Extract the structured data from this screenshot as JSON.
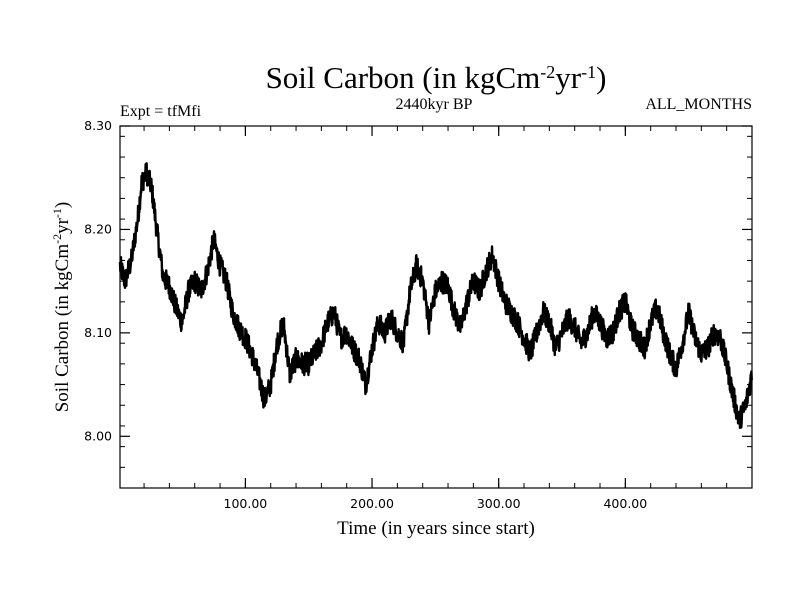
{
  "chart_data": {
    "type": "line",
    "title": "Soil Carbon (in kgCm",
    "title_exp1": "-2",
    "title_mid": "yr",
    "title_exp2": "-1",
    "title_end": ")",
    "left_subtitle": "Expt = tfMfi",
    "center_subtitle": "2440kyr BP",
    "right_subtitle": "ALL_MONTHS",
    "xlabel": "Time (in years since start)",
    "ylabel": "Soil Carbon (in kgCm",
    "ylabel_exp1": "-2",
    "ylabel_mid": "yr",
    "ylabel_exp2": "-1",
    "ylabel_end": ")",
    "xlim": [
      1,
      500
    ],
    "ylim": [
      7.95,
      8.3
    ],
    "x_ticks": [
      {
        "value": 100,
        "label": "100.00"
      },
      {
        "value": 200,
        "label": "200.00"
      },
      {
        "value": 300,
        "label": "300.00"
      },
      {
        "value": 400,
        "label": "400.00"
      }
    ],
    "y_ticks": [
      {
        "value": 8.0,
        "label": "8.00"
      },
      {
        "value": 8.1,
        "label": "8.10"
      },
      {
        "value": 8.2,
        "label": "8.20"
      },
      {
        "value": 8.3,
        "label": "8.30"
      }
    ],
    "series": [
      {
        "name": "Soil Carbon",
        "color": "#000000",
        "x": [
          1,
          5,
          10,
          15,
          18,
          22,
          26,
          30,
          35,
          40,
          45,
          50,
          55,
          60,
          65,
          70,
          75,
          80,
          85,
          90,
          95,
          100,
          105,
          110,
          115,
          120,
          125,
          130,
          135,
          140,
          145,
          150,
          155,
          160,
          165,
          170,
          175,
          180,
          185,
          190,
          195,
          200,
          205,
          210,
          215,
          220,
          225,
          230,
          235,
          240,
          245,
          250,
          255,
          260,
          265,
          270,
          275,
          280,
          285,
          290,
          295,
          300,
          305,
          310,
          315,
          320,
          325,
          330,
          335,
          340,
          345,
          350,
          355,
          360,
          365,
          370,
          375,
          380,
          385,
          390,
          395,
          400,
          405,
          410,
          415,
          420,
          425,
          430,
          435,
          440,
          445,
          450,
          455,
          460,
          465,
          470,
          475,
          480,
          485,
          490,
          495,
          500
        ],
        "values": [
          8.165,
          8.15,
          8.17,
          8.21,
          8.245,
          8.255,
          8.24,
          8.2,
          8.155,
          8.145,
          8.125,
          8.11,
          8.14,
          8.15,
          8.14,
          8.16,
          8.19,
          8.165,
          8.15,
          8.12,
          8.105,
          8.095,
          8.08,
          8.06,
          8.035,
          8.05,
          8.09,
          8.11,
          8.06,
          8.075,
          8.07,
          8.07,
          8.08,
          8.09,
          8.11,
          8.12,
          8.095,
          8.1,
          8.085,
          8.075,
          8.05,
          8.085,
          8.11,
          8.1,
          8.115,
          8.1,
          8.09,
          8.14,
          8.165,
          8.15,
          8.11,
          8.14,
          8.15,
          8.145,
          8.12,
          8.105,
          8.13,
          8.15,
          8.14,
          8.16,
          8.175,
          8.15,
          8.13,
          8.12,
          8.11,
          8.095,
          8.08,
          8.1,
          8.12,
          8.11,
          8.085,
          8.1,
          8.115,
          8.105,
          8.09,
          8.1,
          8.12,
          8.11,
          8.095,
          8.1,
          8.12,
          8.13,
          8.105,
          8.095,
          8.085,
          8.11,
          8.125,
          8.1,
          8.08,
          8.065,
          8.09,
          8.12,
          8.095,
          8.08,
          8.085,
          8.1,
          8.095,
          8.07,
          8.04,
          8.015,
          8.03,
          8.06
        ]
      }
    ]
  }
}
